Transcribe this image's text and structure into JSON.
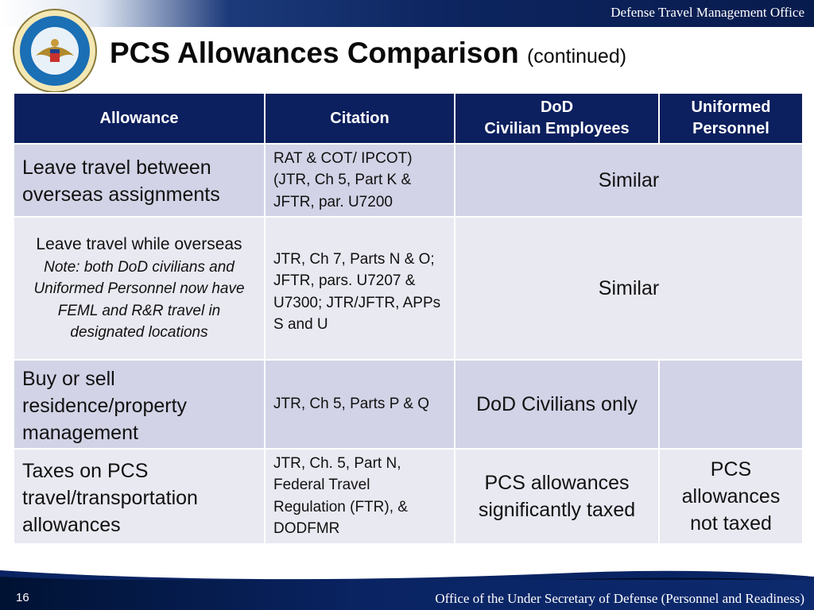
{
  "header": {
    "office": "Defense Travel Management Office",
    "seal_text": "Defense Travel Management Office · Department of Defense",
    "title": "PCS Allowances Comparison",
    "title_suffix": "(continued)"
  },
  "table": {
    "headers": {
      "allowance": "Allowance",
      "citation": "Citation",
      "civilian_line1": "DoD",
      "civilian_line2": "Civilian Employees",
      "uniformed_line1": "Uniformed",
      "uniformed_line2": "Personnel"
    },
    "rows": [
      {
        "allowance": "Leave travel between overseas assignments",
        "citation": "RAT & COT/ IPCOT) (JTR, Ch 5, Part K & JFTR, par. U7200",
        "merged": "Similar"
      },
      {
        "allowance": "Leave travel while overseas",
        "note": "Note: both DoD civilians and Uniformed Personnel now have FEML and R&R travel in designated locations",
        "citation": "JTR, Ch 7, Parts N & O; JFTR, pars. U7207 & U7300; JTR/JFTR, APPs S and U",
        "merged": "Similar"
      },
      {
        "allowance": "Buy or sell residence/property management",
        "citation": "JTR, Ch 5, Parts P & Q",
        "civilian": "DoD  Civilians only",
        "uniformed": ""
      },
      {
        "allowance": "Taxes on PCS travel/transportation allowances",
        "citation": "JTR, Ch. 5, Part N, Federal Travel Regulation (FTR), & DODFMR",
        "civilian": "PCS allowances significantly taxed",
        "uniformed": "PCS allowances not taxed"
      }
    ]
  },
  "footer": {
    "page_number": "16",
    "office": "Office of the Under Secretary of Defense (Personnel and Readiness)"
  },
  "colors": {
    "header_blue": "#0c1f5e",
    "row_dark": "#d2d3e6",
    "row_light": "#e9e9f2"
  }
}
